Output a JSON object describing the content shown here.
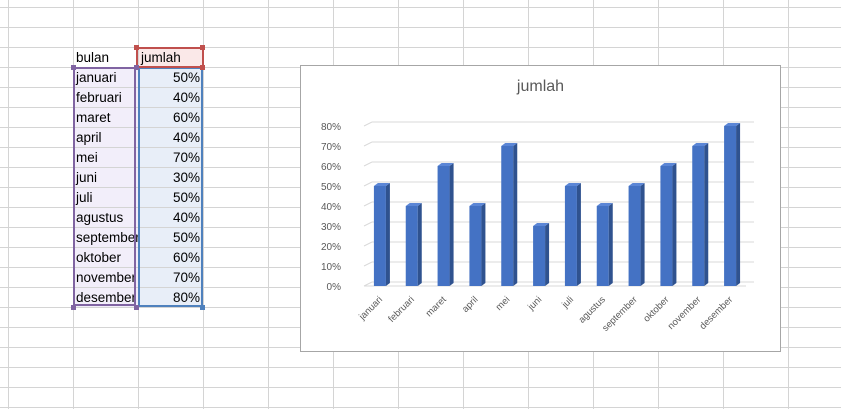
{
  "spreadsheet": {
    "headers": [
      "bulan",
      "jumlah"
    ],
    "rows": [
      {
        "bulan": "januari",
        "jumlah": "50%"
      },
      {
        "bulan": "februari",
        "jumlah": "40%"
      },
      {
        "bulan": "maret",
        "jumlah": "60%"
      },
      {
        "bulan": "april",
        "jumlah": "40%"
      },
      {
        "bulan": "mei",
        "jumlah": "70%"
      },
      {
        "bulan": "juni",
        "jumlah": "30%"
      },
      {
        "bulan": "juli",
        "jumlah": "50%"
      },
      {
        "bulan": "agustus",
        "jumlah": "40%"
      },
      {
        "bulan": "september",
        "jumlah": "50%"
      },
      {
        "bulan": "oktober",
        "jumlah": "60%"
      },
      {
        "bulan": "november",
        "jumlah": "70%"
      },
      {
        "bulan": "desember",
        "jumlah": "80%"
      }
    ]
  },
  "colors": {
    "bar_front": "#4472c4",
    "bar_side": "#2f528f",
    "bar_top": "#5b86d6",
    "gridline": "#d9d9d9",
    "selection_purple": "#8064a2",
    "selection_blue": "#4f81bd",
    "selection_red": "#c0504d"
  },
  "chart_data": {
    "type": "bar",
    "title": "jumlah",
    "categories": [
      "januari",
      "februari",
      "maret",
      "april",
      "mei",
      "juni",
      "juli",
      "agustus",
      "september",
      "oktober",
      "november",
      "desember"
    ],
    "values": [
      50,
      40,
      60,
      40,
      70,
      30,
      50,
      40,
      50,
      60,
      70,
      80
    ],
    "y_ticks": [
      "0%",
      "10%",
      "20%",
      "30%",
      "40%",
      "50%",
      "60%",
      "70%",
      "80%"
    ],
    "ylim": [
      0,
      80
    ],
    "grid": true,
    "legend": false,
    "style": "3d-column"
  }
}
